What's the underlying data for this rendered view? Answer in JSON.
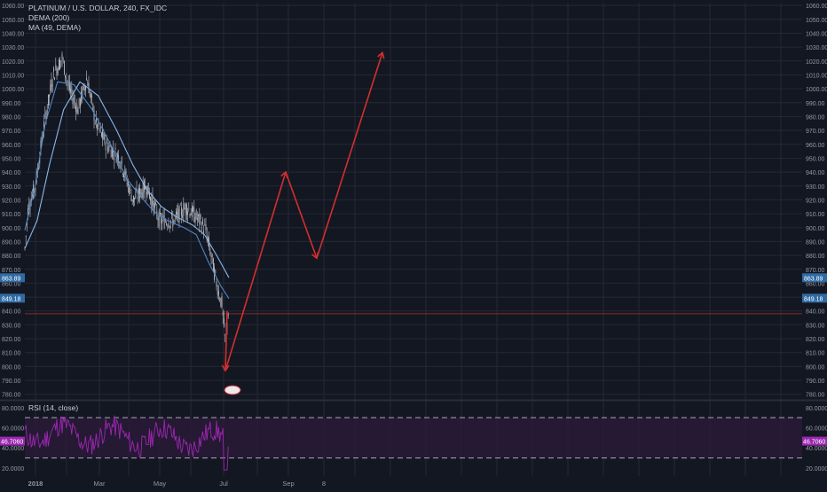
{
  "header": {
    "symbol_line": "PLATINUM / U.S. DOLLAR, 240, FX_IDC",
    "study1": "DEMA (200)",
    "study2": "MA (49, DEMA)"
  },
  "rsi_pane": {
    "label": "RSI (14, close)",
    "current_badge": "46.7060",
    "upper_band": 70,
    "lower_band": 30
  },
  "price_badges": {
    "ma": "863.89",
    "dema": "849.18",
    "ma_value": 863.89,
    "dema_value": 849.18
  },
  "horizontal_line": {
    "value": 838,
    "color": "#8b2a2a"
  },
  "colors": {
    "background": "#131722",
    "grid": "#242832",
    "candle": "#c0c3cb",
    "dema_line": "#4f87c2",
    "ma_line": "#8ab8e8",
    "rsi_line": "#9c27b0",
    "rsi_fill": "#2a1a3a",
    "arrow": "#d32f2f",
    "badge_blue": "#2f6aa3",
    "badge_purple": "#9c27b0"
  },
  "chart_data": {
    "type": "line",
    "price_axis": {
      "ylim": [
        776,
        1062
      ],
      "ticks": [
        780,
        790,
        800,
        810,
        820,
        830,
        840,
        850,
        860,
        870,
        880,
        890,
        900,
        910,
        920,
        930,
        940,
        950,
        960,
        970,
        980,
        990,
        1000,
        1010,
        1020,
        1030,
        1040,
        1050,
        1060
      ],
      "tick_labels": [
        "780.00",
        "790.00",
        "800.00",
        "810.00",
        "820.00",
        "830.00",
        "840.00",
        "850.00",
        "860.00",
        "870.00",
        "880.00",
        "890.00",
        "900.00",
        "910.00",
        "920.00",
        "930.00",
        "940.00",
        "950.00",
        "960.00",
        "970.00",
        "980.00",
        "990.00",
        "1000.00",
        "1010.00",
        "1020.00",
        "1030.00",
        "1040.00",
        "1050.00",
        "1060.00"
      ]
    },
    "rsi_axis": {
      "ylim": [
        12,
        86
      ],
      "ticks": [
        20,
        40,
        60,
        80
      ],
      "tick_labels": [
        "20.0000",
        "40.0000",
        "60.0000",
        "80.0000"
      ]
    },
    "time_axis": {
      "ticks": [
        "2018",
        "Mar",
        "May",
        "Jul",
        "Sep",
        "8"
      ]
    },
    "series": [
      {
        "name": "DEMA (200)",
        "keypoints": [
          [
            0,
            898
          ],
          [
            0.05,
            930
          ],
          [
            0.1,
            975
          ],
          [
            0.16,
            1005
          ],
          [
            0.24,
            1003
          ],
          [
            0.33,
            985
          ],
          [
            0.42,
            960
          ],
          [
            0.5,
            935
          ],
          [
            0.57,
            922
          ],
          [
            0.63,
            912
          ],
          [
            0.7,
            905
          ],
          [
            0.78,
            900
          ],
          [
            0.84,
            895
          ],
          [
            0.9,
            875
          ],
          [
            0.96,
            858
          ],
          [
            1,
            849
          ]
        ]
      },
      {
        "name": "MA (49, DEMA)",
        "keypoints": [
          [
            0,
            885
          ],
          [
            0.06,
            905
          ],
          [
            0.12,
            945
          ],
          [
            0.19,
            985
          ],
          [
            0.27,
            1005
          ],
          [
            0.36,
            995
          ],
          [
            0.45,
            970
          ],
          [
            0.53,
            945
          ],
          [
            0.6,
            927
          ],
          [
            0.67,
            915
          ],
          [
            0.74,
            908
          ],
          [
            0.82,
            902
          ],
          [
            0.88,
            895
          ],
          [
            0.94,
            880
          ],
          [
            1,
            864
          ]
        ]
      }
    ],
    "projection": {
      "description_points": [
        [
          848,
          840
        ],
        [
          798,
          797
        ],
        [
          820,
          940
        ],
        [
          865,
          878
        ],
        [
          885,
          1026
        ]
      ]
    }
  }
}
